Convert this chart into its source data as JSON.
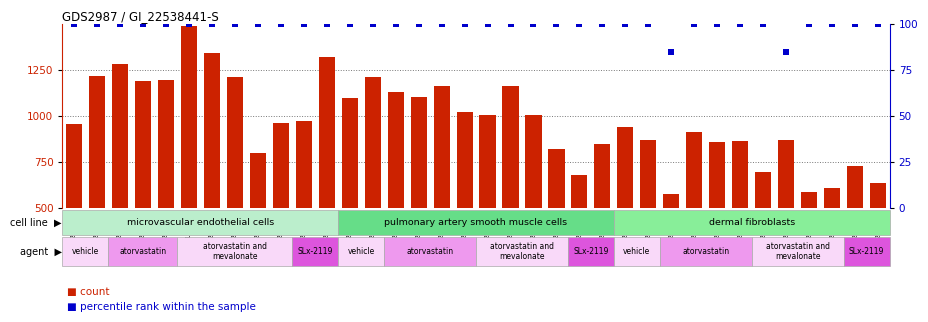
{
  "title": "GDS2987 / GI_22538441-S",
  "samples": [
    "GSM214810",
    "GSM215244",
    "GSM215253",
    "GSM215254",
    "GSM215282",
    "GSM2153344",
    "GSM215283",
    "GSM215284",
    "GSM215293",
    "GSM215294",
    "GSM215295",
    "GSM215296",
    "GSM215297",
    "GSM215298",
    "GSM215310",
    "GSM215311",
    "GSM215312",
    "GSM215313",
    "GSM215324",
    "GSM215325",
    "GSM215326",
    "GSM215327",
    "GSM215328",
    "GSM215329",
    "GSM215330",
    "GSM215331",
    "GSM215332",
    "GSM215333",
    "GSM215334",
    "GSM215335",
    "GSM215336",
    "GSM215337",
    "GSM215338",
    "GSM215339",
    "GSM215340",
    "GSM215341"
  ],
  "counts": [
    960,
    1220,
    1285,
    1190,
    1195,
    1490,
    1340,
    1210,
    800,
    965,
    975,
    1320,
    1100,
    1215,
    1130,
    1105,
    1165,
    1020,
    1005,
    1165,
    1005,
    820,
    680,
    850,
    940,
    870,
    575,
    915,
    860,
    865,
    695,
    870,
    590,
    610,
    730,
    635
  ],
  "percentile_ranks": [
    100,
    100,
    100,
    100,
    100,
    100,
    100,
    100,
    100,
    100,
    100,
    100,
    100,
    100,
    100,
    100,
    100,
    100,
    100,
    100,
    100,
    100,
    100,
    100,
    100,
    100,
    85,
    100,
    100,
    100,
    100,
    85,
    100,
    100,
    100,
    100
  ],
  "bar_color": "#cc2200",
  "dot_color": "#0000cc",
  "ylim_left": [
    500,
    1500
  ],
  "ylim_right": [
    0,
    100
  ],
  "yticks_left": [
    500,
    750,
    1000,
    1250
  ],
  "yticks_right": [
    0,
    25,
    50,
    75,
    100
  ],
  "background_color": "#ffffff",
  "grid_color": "#777777",
  "cell_line_data": [
    {
      "label": "microvascular endothelial cells",
      "start": 0,
      "end": 11,
      "color": "#bbeecc"
    },
    {
      "label": "pulmonary artery smooth muscle cells",
      "start": 12,
      "end": 23,
      "color": "#66dd88"
    },
    {
      "label": "dermal fibroblasts",
      "start": 24,
      "end": 35,
      "color": "#88ee99"
    }
  ],
  "agent_data": [
    {
      "label": "vehicle",
      "start": 0,
      "end": 1,
      "color": "#f9d9f9"
    },
    {
      "label": "atorvastatin",
      "start": 2,
      "end": 4,
      "color": "#ee99ee"
    },
    {
      "label": "atorvastatin and\nmevalonate",
      "start": 5,
      "end": 9,
      "color": "#f9d9f9"
    },
    {
      "label": "SLx-2119",
      "start": 10,
      "end": 11,
      "color": "#dd55dd"
    },
    {
      "label": "vehicle",
      "start": 12,
      "end": 13,
      "color": "#f9d9f9"
    },
    {
      "label": "atorvastatin",
      "start": 14,
      "end": 17,
      "color": "#ee99ee"
    },
    {
      "label": "atorvastatin and\nmevalonate",
      "start": 18,
      "end": 21,
      "color": "#f9d9f9"
    },
    {
      "label": "SLx-2119",
      "start": 22,
      "end": 23,
      "color": "#dd55dd"
    },
    {
      "label": "vehicle",
      "start": 24,
      "end": 25,
      "color": "#f9d9f9"
    },
    {
      "label": "atorvastatin",
      "start": 26,
      "end": 29,
      "color": "#ee99ee"
    },
    {
      "label": "atorvastatin and\nmevalonate",
      "start": 30,
      "end": 33,
      "color": "#f9d9f9"
    },
    {
      "label": "SLx-2119",
      "start": 34,
      "end": 35,
      "color": "#dd55dd"
    }
  ]
}
